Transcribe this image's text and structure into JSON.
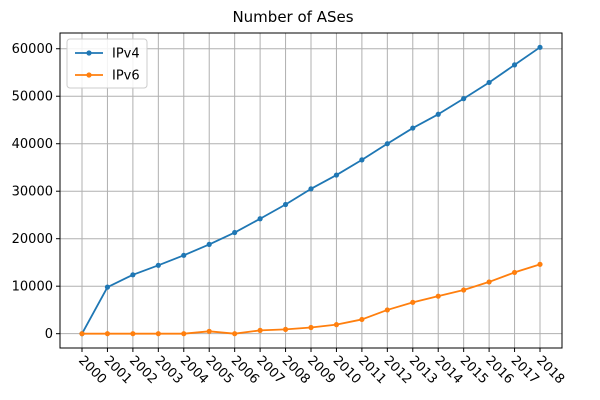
{
  "chart_data": {
    "type": "line",
    "title": "Number of ASes",
    "xlabel": "",
    "ylabel": "",
    "categories": [
      "2000",
      "2001",
      "2002",
      "2003",
      "2004",
      "2005",
      "2006",
      "2007",
      "2008",
      "2009",
      "2010",
      "2011",
      "2012",
      "2013",
      "2014",
      "2015",
      "2016",
      "2017",
      "2018"
    ],
    "series": [
      {
        "name": "IPv4",
        "color": "#1f77b4",
        "values": [
          0,
          9800,
          12400,
          14400,
          16500,
          18800,
          21300,
          24200,
          27200,
          30500,
          33400,
          36600,
          40000,
          43300,
          46200,
          49500,
          52900,
          56600,
          60300
        ]
      },
      {
        "name": "IPv6",
        "color": "#ff7f0e",
        "values": [
          0,
          0,
          0,
          0,
          0,
          500,
          0,
          700,
          900,
          1300,
          1900,
          3000,
          5000,
          6600,
          7900,
          9200,
          10900,
          12900,
          14600
        ]
      }
    ],
    "yticks": [
      0,
      10000,
      20000,
      30000,
      40000,
      50000,
      60000
    ],
    "ylim": [
      -3015,
      63315
    ],
    "grid": true,
    "legend_position": "top-left",
    "marker": "dot"
  }
}
